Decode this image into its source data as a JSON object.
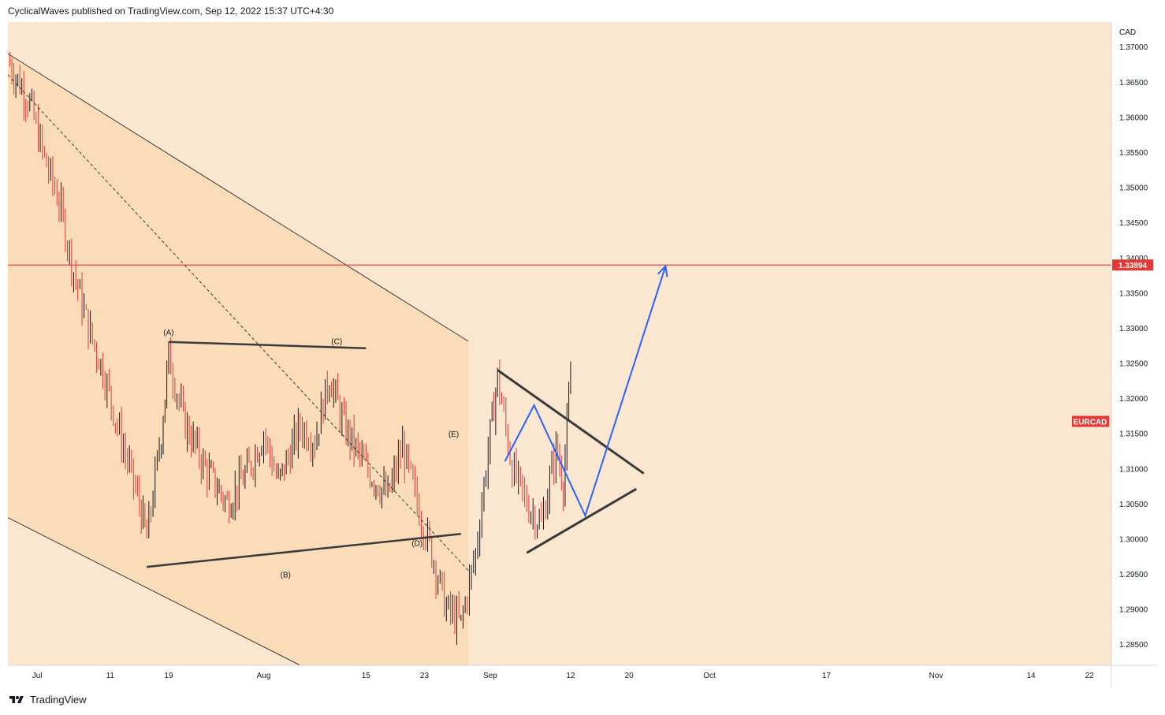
{
  "header": {
    "text": "CyclicalWaves published on TradingView.com, Sep 12, 2022 15:37 UTC+4:30"
  },
  "footer": {
    "brand": "TradingView",
    "logo_icon": "tradingview-logo-icon"
  },
  "chart_data": {
    "type": "candlestick",
    "symbol": "EURCAD",
    "currency_label": "CAD",
    "colors": {
      "background": "#fbe6d0",
      "channel_fill": "#fbdcb8",
      "down": "#e53935",
      "up": "#131722",
      "projection": "#2962ff",
      "pattern_lines": "#3a3a3a",
      "resistance": "#e53935"
    },
    "ylim": [
      1.282,
      1.3735
    ],
    "y_ticks": [
      "1.37000",
      "1.36500",
      "1.36000",
      "1.35500",
      "1.35000",
      "1.34500",
      "1.34000",
      "1.33500",
      "1.33000",
      "1.32500",
      "1.32000",
      "1.31500",
      "1.31000",
      "1.30500",
      "1.30000",
      "1.29500",
      "1.29000",
      "1.28500"
    ],
    "y_tick_values": [
      1.37,
      1.365,
      1.36,
      1.355,
      1.35,
      1.345,
      1.34,
      1.335,
      1.33,
      1.325,
      1.32,
      1.315,
      1.31,
      1.305,
      1.3,
      1.295,
      1.29,
      1.285
    ],
    "x_domain": [
      "2022-06-27",
      "2022-11-25"
    ],
    "x_ticks": [
      {
        "label": "Jul",
        "date": "2022-07-01"
      },
      {
        "label": "11",
        "date": "2022-07-11"
      },
      {
        "label": "19",
        "date": "2022-07-19"
      },
      {
        "label": "Aug",
        "date": "2022-08-01"
      },
      {
        "label": "15",
        "date": "2022-08-15"
      },
      {
        "label": "23",
        "date": "2022-08-23"
      },
      {
        "label": "Sep",
        "date": "2022-09-01"
      },
      {
        "label": "12",
        "date": "2022-09-12"
      },
      {
        "label": "20",
        "date": "2022-09-20"
      },
      {
        "label": "Oct",
        "date": "2022-10-01"
      },
      {
        "label": "17",
        "date": "2022-10-17"
      },
      {
        "label": "Nov",
        "date": "2022-11-01"
      },
      {
        "label": "14",
        "date": "2022-11-14"
      },
      {
        "label": "22",
        "date": "2022-11-22"
      }
    ],
    "price_path": [
      [
        "2022-06-27",
        1.368
      ],
      [
        "2022-06-30",
        1.362
      ],
      [
        "2022-07-02",
        1.354
      ],
      [
        "2022-07-04",
        1.348
      ],
      [
        "2022-07-06",
        1.338
      ],
      [
        "2022-07-08",
        1.33
      ],
      [
        "2022-07-10",
        1.324
      ],
      [
        "2022-07-12",
        1.316
      ],
      [
        "2022-07-15",
        1.305
      ],
      [
        "2022-07-16",
        1.3
      ],
      [
        "2022-07-18",
        1.315
      ],
      [
        "2022-07-19",
        1.326
      ],
      [
        "2022-07-21",
        1.317
      ],
      [
        "2022-07-24",
        1.31
      ],
      [
        "2022-07-27",
        1.305
      ],
      [
        "2022-07-30",
        1.31
      ],
      [
        "2022-08-01",
        1.315
      ],
      [
        "2022-08-03",
        1.308
      ],
      [
        "2022-08-06",
        1.316
      ],
      [
        "2022-08-08",
        1.314
      ],
      [
        "2022-08-10",
        1.323
      ],
      [
        "2022-08-12",
        1.316
      ],
      [
        "2022-08-15",
        1.31
      ],
      [
        "2022-08-18",
        1.306
      ],
      [
        "2022-08-20",
        1.313
      ],
      [
        "2022-08-22",
        1.305
      ],
      [
        "2022-08-24",
        1.298
      ],
      [
        "2022-08-26",
        1.29
      ],
      [
        "2022-08-28",
        1.288
      ],
      [
        "2022-08-30",
        1.298
      ],
      [
        "2022-09-01",
        1.315
      ],
      [
        "2022-09-02",
        1.323
      ],
      [
        "2022-09-04",
        1.31
      ],
      [
        "2022-09-06",
        1.305
      ],
      [
        "2022-09-08",
        1.302
      ],
      [
        "2022-09-10",
        1.313
      ],
      [
        "2022-09-11",
        1.308
      ],
      [
        "2022-09-12",
        1.323
      ]
    ],
    "price_line": {
      "value": 1.33894,
      "label": "1.33894"
    },
    "symbol_tag": {
      "label": "EURCAD",
      "value": 1.3167
    },
    "annotations": [
      {
        "label": "(A)",
        "date": "2022-07-19",
        "value": 1.329
      },
      {
        "label": "(B)",
        "date": "2022-08-04",
        "value": 1.2945
      },
      {
        "label": "(C)",
        "date": "2022-08-11",
        "value": 1.3277
      },
      {
        "label": "(D)",
        "date": "2022-08-22",
        "value": 1.299
      },
      {
        "label": "(E)",
        "date": "2022-08-27",
        "value": 1.3145
      }
    ],
    "channel": {
      "upper": [
        [
          "2022-06-27",
          1.369
        ],
        [
          "2022-08-29",
          1.3281
        ]
      ],
      "middle": [
        [
          "2022-06-27",
          1.366
        ],
        [
          "2022-08-29",
          1.2955
        ]
      ],
      "lower": [
        [
          "2022-06-27",
          1.303
        ],
        [
          "2022-08-06",
          1.282
        ]
      ]
    },
    "trendlines": [
      [
        [
          "2022-07-19",
          1.328
        ],
        [
          "2022-08-15",
          1.3271
        ]
      ],
      [
        [
          "2022-07-16",
          1.296
        ],
        [
          "2022-08-28",
          1.3007
        ]
      ],
      [
        [
          "2022-09-02",
          1.324
        ],
        [
          "2022-09-22",
          1.3093
        ]
      ],
      [
        [
          "2022-09-06",
          1.298
        ],
        [
          "2022-09-21",
          1.3071
        ]
      ]
    ],
    "projection": [
      [
        "2022-09-03",
        1.311
      ],
      [
        "2022-09-07",
        1.319
      ],
      [
        "2022-09-14",
        1.3033
      ],
      [
        "2022-09-25",
        1.3388
      ]
    ],
    "grid": false
  }
}
